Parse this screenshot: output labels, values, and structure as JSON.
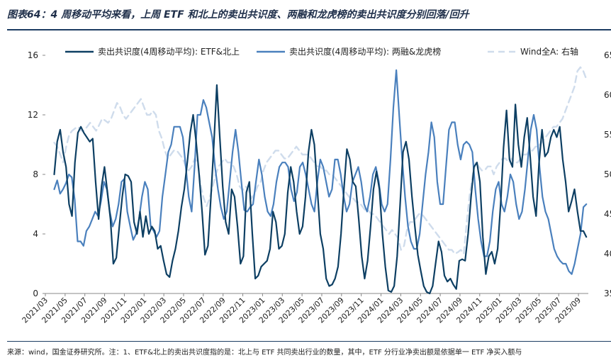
{
  "title": "图表64：4 周移动平均来看，上周 ETF 和北上的卖出共识度、两融和龙虎榜的卖出共识度分别回落/回升",
  "source": "来源：wind，国金证券研究所。注：1、ETF&北上的卖出共识度指的是：北上与 ETF 共同卖出行业的数量，其中，ETF 分行业净卖出额是依据单一 ETF 净买入额与",
  "colors": {
    "etf": "#0d3f63",
    "margin": "#4a80bd",
    "wind": "#cfdcec"
  },
  "chart_data": {
    "type": "line",
    "x_start": "2021/03",
    "x_ticks": [
      "2021/03",
      "2021/05",
      "2021/07",
      "2021/09",
      "2021/11",
      "2022/01",
      "2022/03",
      "2022/05",
      "2022/07",
      "2022/09",
      "2022/11",
      "2023/01",
      "2023/03",
      "2023/05",
      "2023/07",
      "2023/09",
      "2023/11",
      "2024/01",
      "2024/03",
      "2024/05",
      "2024/07",
      "2024/09",
      "2024/11",
      "2025/01",
      "2025/03",
      "2025/05",
      "2025/07",
      "2025/09"
    ],
    "left_axis": {
      "ylim": [
        0,
        16
      ],
      "ticks": [
        0,
        4,
        8,
        12,
        16
      ]
    },
    "right_axis": {
      "ylim": [
        35,
        65
      ],
      "ticks": [
        35,
        40,
        45,
        50,
        55,
        60,
        65
      ],
      "tick_labels": [
        "35",
        "40",
        "45",
        "50",
        "55",
        "60",
        "65"
      ]
    },
    "legend": [
      "卖出共识度(4周移动平均): ETF&北上",
      "卖出共识度(4周移动平均): 两融&龙虎榜",
      "Wind全A: 右轴"
    ],
    "series": [
      {
        "name": "卖出共识度(4周移动平均): ETF&北上",
        "axis": "left",
        "style": "solid",
        "weekly_values": [
          8.0,
          10.2,
          11.0,
          9.5,
          8.5,
          6.0,
          5.2,
          8.8,
          10.8,
          11.2,
          10.8,
          10.5,
          10.2,
          10.4,
          7.5,
          5.0,
          7.2,
          8.5,
          6.8,
          5.0,
          2.0,
          2.4,
          4.5,
          6.5,
          8.0,
          7.9,
          7.5,
          4.8,
          4.0,
          5.5,
          3.8,
          5.2,
          4.0,
          4.5,
          4.2,
          3.0,
          3.2,
          2.2,
          1.3,
          1.1,
          2.2,
          3.0,
          4.2,
          5.8,
          7.0,
          8.8,
          10.8,
          12.0,
          10.2,
          8.0,
          5.5,
          2.6,
          3.2,
          6.5,
          10.0,
          14.0,
          10.5,
          7.2,
          4.8,
          4.0,
          7.0,
          6.5,
          4.5,
          2.0,
          2.5,
          6.8,
          7.5,
          4.0,
          1.0,
          1.2,
          1.8,
          2.0,
          2.2,
          3.0,
          5.5,
          4.8,
          3.0,
          3.2,
          4.0,
          6.8,
          8.5,
          7.5,
          5.5,
          4.0,
          4.5,
          6.5,
          9.5,
          11.0,
          10.0,
          7.0,
          4.0,
          3.0,
          1.0,
          0.5,
          0.6,
          1.0,
          1.8,
          4.0,
          7.0,
          9.7,
          9.0,
          7.5,
          7.2,
          5.0,
          2.5,
          1.0,
          2.2,
          4.5,
          7.0,
          8.2,
          7.0,
          4.0,
          1.8,
          0.2,
          0.1,
          0.5,
          2.5,
          6.0,
          9.5,
          10.2,
          9.0,
          6.5,
          4.5,
          2.6,
          1.5,
          0.5,
          0.1,
          0.0,
          0.5,
          2.0,
          3.5,
          2.8,
          1.2,
          0.8,
          1.0,
          0.6,
          0.3,
          2.2,
          2.3,
          2.2,
          4.0,
          6.5,
          8.5,
          8.8,
          7.5,
          3.8,
          1.3,
          2.5,
          2.8,
          2.0,
          3.0,
          6.0,
          9.8,
          12.3,
          9.0,
          8.5,
          12.7,
          10.0,
          8.5,
          10.5,
          11.8,
          9.2,
          6.5,
          5.2,
          8.8,
          11.0,
          9.2,
          9.5,
          10.5,
          11.0,
          10.5,
          11.2,
          9.0,
          7.5,
          5.5,
          6.2,
          7.0,
          5.5,
          4.2,
          4.2,
          3.8
        ]
      },
      {
        "name": "卖出共识度(4周移动平均): 两融&龙虎榜",
        "axis": "left",
        "style": "solid",
        "weekly_values": [
          7.0,
          7.6,
          6.7,
          7.0,
          7.4,
          8.0,
          7.8,
          6.3,
          3.5,
          3.5,
          3.2,
          4.2,
          4.5,
          5.0,
          5.5,
          5.2,
          6.2,
          7.5,
          7.0,
          5.5,
          4.5,
          5.0,
          6.0,
          7.5,
          7.7,
          5.5,
          4.5,
          3.6,
          4.0,
          5.0,
          6.5,
          7.5,
          7.0,
          4.5,
          4.2,
          3.8,
          4.2,
          6.5,
          8.0,
          9.5,
          10.0,
          11.2,
          11.2,
          11.2,
          10.5,
          8.5,
          6.5,
          5.5,
          8.5,
          12.0,
          12.0,
          13.0,
          12.5,
          11.5,
          10.5,
          8.5,
          7.0,
          5.8,
          5.0,
          5.5,
          7.5,
          9.5,
          11.0,
          9.5,
          7.5,
          5.6,
          5.5,
          5.8,
          6.0,
          7.5,
          9.0,
          8.0,
          6.5,
          5.5,
          5.2,
          6.0,
          7.5,
          8.5,
          8.8,
          8.8,
          8.5,
          7.0,
          6.2,
          6.8,
          8.5,
          8.8,
          8.0,
          7.0,
          6.0,
          5.5,
          7.5,
          9.0,
          8.5,
          7.5,
          6.5,
          7.0,
          9.0,
          9.0,
          8.0,
          6.5,
          5.5,
          6.0,
          7.5,
          8.0,
          8.5,
          7.5,
          6.0,
          5.5,
          6.5,
          8.0,
          8.5,
          7.5,
          6.0,
          5.5,
          6.0,
          9.0,
          12.5,
          15.0,
          12.0,
          9.0,
          6.5,
          4.5,
          3.5,
          3.0,
          3.0,
          4.0,
          6.0,
          8.0,
          9.5,
          11.5,
          10.5,
          7.5,
          6.0,
          6.0,
          8.5,
          11.0,
          11.5,
          11.5,
          10.0,
          9.0,
          10.0,
          10.2,
          10.0,
          9.5,
          7.0,
          5.0,
          3.5,
          2.5,
          2.5,
          3.5,
          5.5,
          7.0,
          7.5,
          6.0,
          5.5,
          6.5,
          8.0,
          7.5,
          6.0,
          5.0,
          5.5,
          7.0,
          9.0,
          11.0,
          12.0,
          11.0,
          8.5,
          6.5,
          5.5,
          5.0,
          4.0,
          3.0,
          2.5,
          2.2,
          2.0,
          2.0,
          1.5,
          1.3,
          2.0,
          3.0,
          4.0,
          5.8,
          6.0
        ]
      },
      {
        "name": "Wind全A: 右轴",
        "axis": "right",
        "style": "dashed",
        "weekly_values": [
          54.0,
          53.5,
          52.5,
          51.5,
          53.5,
          55.0,
          55.5,
          55.8,
          56.0,
          55.5,
          55.5,
          56.0,
          56.5,
          56.0,
          55.5,
          56.2,
          57.0,
          56.8,
          56.5,
          57.0,
          58.0,
          59.0,
          58.5,
          57.5,
          57.0,
          57.5,
          58.0,
          58.5,
          59.0,
          59.5,
          58.5,
          57.5,
          57.5,
          58.0,
          57.5,
          55.5,
          54.5,
          53.0,
          52.0,
          52.5,
          53.0,
          53.0,
          52.5,
          52.0,
          51.0,
          50.5,
          51.0,
          52.0,
          51.5,
          48.5,
          47.0,
          46.0,
          47.0,
          48.5,
          50.0,
          51.0,
          51.5,
          52.0,
          51.5,
          51.5,
          51.0,
          50.0,
          48.5,
          48.0,
          48.5,
          48.0,
          47.0,
          47.5,
          48.5,
          49.0,
          50.5,
          51.5,
          52.0,
          52.5,
          53.0,
          53.0,
          52.5,
          52.0,
          52.0,
          52.5,
          53.0,
          53.5,
          53.0,
          52.5,
          52.5,
          52.5,
          52.0,
          51.5,
          51.0,
          51.0,
          50.5,
          50.5,
          50.0,
          50.0,
          49.5,
          49.0,
          48.5,
          48.0,
          47.5,
          47.0,
          47.0,
          46.5,
          46.5,
          46.0,
          45.5,
          45.5,
          45.0,
          45.0,
          44.5,
          44.0,
          43.5,
          43.0,
          42.5,
          43.0,
          42.5,
          42.0,
          40.5,
          41.0,
          43.0,
          44.0,
          44.0,
          44.5,
          45.0,
          45.0,
          44.5,
          44.0,
          43.5,
          43.0,
          42.5,
          42.0,
          41.5,
          41.0,
          40.5,
          40.5,
          40.0,
          40.2,
          40.5,
          40.0,
          44.0,
          47.5,
          50.0,
          51.5,
          51.0,
          50.5,
          50.5,
          51.0,
          51.0,
          50.0,
          51.0,
          51.5,
          52.0,
          52.0,
          51.5,
          52.0,
          51.5,
          51.5,
          52.0,
          52.5,
          52.5,
          53.0,
          53.0,
          53.5,
          53.5,
          54.0,
          54.5,
          55.0,
          55.5,
          56.0,
          56.0,
          56.5,
          57.0,
          58.0,
          59.0,
          60.0,
          61.0,
          63.0,
          63.5,
          63.0,
          62.0
        ]
      }
    ]
  }
}
